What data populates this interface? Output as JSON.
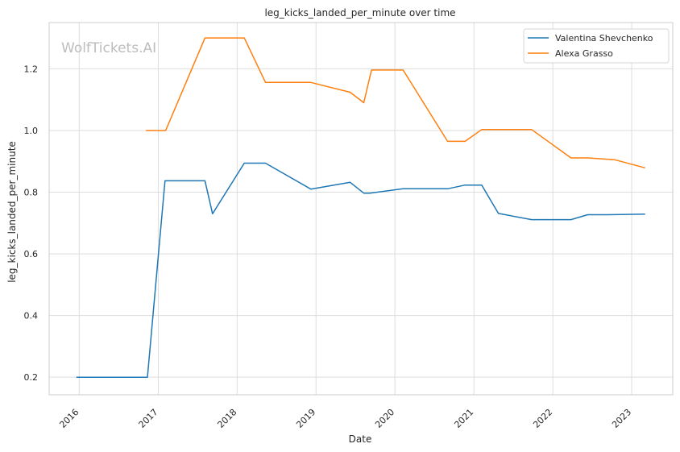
{
  "watermark": "WolfTickets.AI",
  "chart_data": {
    "type": "line",
    "title": "leg_kicks_landed_per_minute over time",
    "xlabel": "Date",
    "ylabel": "leg_kicks_landed_per_minute",
    "x_ticks": [
      "2016",
      "2017",
      "2018",
      "2019",
      "2020",
      "2021",
      "2022",
      "2023"
    ],
    "y_ticks": [
      "0.2",
      "0.4",
      "0.6",
      "0.8",
      "1.0",
      "1.2"
    ],
    "xlim": [
      "2015-08-15",
      "2023-07-10"
    ],
    "ylim": [
      0.143,
      1.35
    ],
    "grid": true,
    "legend_position": "top-right",
    "series": [
      {
        "name": "Valentina Shevchenko",
        "color": "#1f77b4",
        "points": [
          [
            "2015-12-19",
            0.2
          ],
          [
            "2016-11-12",
            0.2
          ],
          [
            "2017-02-01",
            0.837
          ],
          [
            "2017-08-05",
            0.837
          ],
          [
            "2017-09-09",
            0.73
          ],
          [
            "2018-02-03",
            0.894
          ],
          [
            "2018-05-12",
            0.894
          ],
          [
            "2018-12-08",
            0.81
          ],
          [
            "2019-06-08",
            0.832
          ],
          [
            "2019-08-10",
            0.797
          ],
          [
            "2019-09-07",
            0.797
          ],
          [
            "2020-02-08",
            0.811
          ],
          [
            "2020-09-01",
            0.811
          ],
          [
            "2020-11-21",
            0.823
          ],
          [
            "2021-02-06",
            0.823
          ],
          [
            "2021-04-24",
            0.731
          ],
          [
            "2021-09-25",
            0.711
          ],
          [
            "2022-03-26",
            0.711
          ],
          [
            "2022-06-11",
            0.727
          ],
          [
            "2022-09-10",
            0.727
          ],
          [
            "2023-03-04",
            0.729
          ]
        ]
      },
      {
        "name": "Alexa Grasso",
        "color": "#ff7f0e",
        "points": [
          [
            "2016-11-05",
            1.0
          ],
          [
            "2017-02-04",
            1.0
          ],
          [
            "2017-08-05",
            1.3
          ],
          [
            "2018-02-03",
            1.3
          ],
          [
            "2018-05-12",
            1.156
          ],
          [
            "2018-12-08",
            1.156
          ],
          [
            "2019-06-08",
            1.124
          ],
          [
            "2019-08-10",
            1.09
          ],
          [
            "2019-09-15",
            1.196
          ],
          [
            "2020-02-08",
            1.196
          ],
          [
            "2020-09-01",
            0.965
          ],
          [
            "2020-11-21",
            0.965
          ],
          [
            "2021-02-06",
            1.003
          ],
          [
            "2021-09-25",
            1.003
          ],
          [
            "2022-03-26",
            0.911
          ],
          [
            "2022-06-11",
            0.911
          ],
          [
            "2022-10-15",
            0.905
          ],
          [
            "2023-03-04",
            0.879
          ]
        ]
      }
    ]
  }
}
